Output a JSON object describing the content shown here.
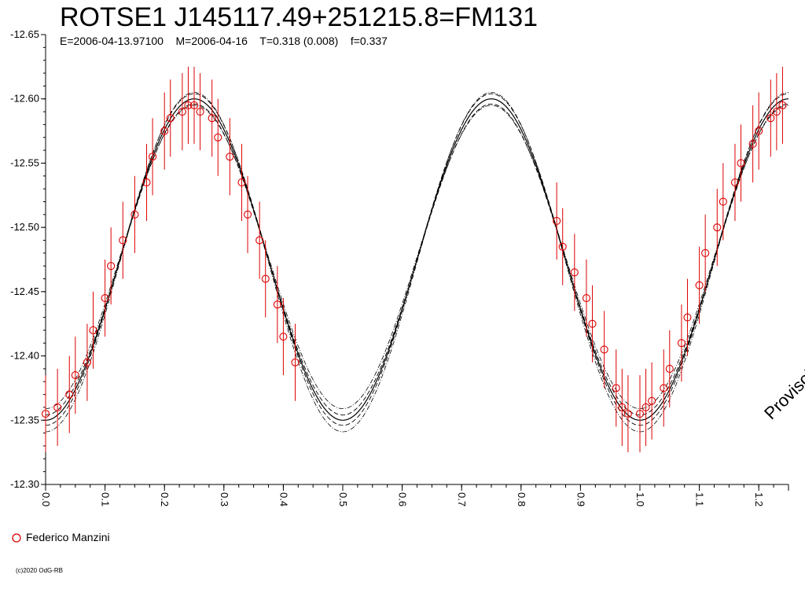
{
  "title": "ROTSE1 J145117.49+251215.8=FM131",
  "info_line": "E=2006-04-13.97100    M=2006-04-16    T=0.318 (0.008)    f=0.337",
  "watermark": "Provisoire",
  "copyright": "(c)2020 OdG-RB",
  "colors": {
    "data": "#dd0000",
    "fit": "#000000",
    "axes": "#000000"
  },
  "chart_data": {
    "type": "scatter",
    "xlabel": "",
    "ylabel": "",
    "xlim": [
      0.0,
      1.25
    ],
    "ylim": [
      -12.65,
      -12.3
    ],
    "y_inverted": true,
    "x_ticks": [
      "0.0",
      "0.1",
      "0.2",
      "0.3",
      "0.4",
      "0.5",
      "0.6",
      "0.7",
      "0.8",
      "0.9",
      "1.0",
      "1.1",
      "1.2"
    ],
    "y_ticks": [
      "-12.65",
      "-12.60",
      "-12.55",
      "-12.50",
      "-12.45",
      "-12.40",
      "-12.35",
      "-12.30"
    ],
    "model": {
      "mean": -12.475,
      "amplitude": 0.125,
      "period_phase": 0.5,
      "max_phase": 0.25,
      "curves": [
        "best fit",
        "upper bound",
        "lower bound",
        "upper dashed",
        "lower dashed"
      ]
    },
    "series": [
      {
        "name": "Federico Manzini",
        "marker": "open-circle",
        "x": [
          0.0,
          0.02,
          0.04,
          0.05,
          0.07,
          0.08,
          0.1,
          0.11,
          0.13,
          0.15,
          0.17,
          0.18,
          0.2,
          0.21,
          0.23,
          0.24,
          0.25,
          0.26,
          0.28,
          0.29,
          0.31,
          0.33,
          0.34,
          0.36,
          0.37,
          0.39,
          0.4,
          0.42,
          0.86,
          0.87,
          0.89,
          0.91,
          0.92,
          0.94,
          0.96,
          0.97,
          0.98,
          1.0,
          1.01,
          1.02,
          1.04,
          1.05,
          1.07,
          1.08,
          1.1,
          1.11,
          1.13,
          1.14,
          1.16,
          1.17,
          1.19,
          1.2,
          1.22,
          1.23,
          1.24
        ],
        "y": [
          -12.355,
          -12.36,
          -12.37,
          -12.385,
          -12.395,
          -12.42,
          -12.445,
          -12.47,
          -12.49,
          -12.51,
          -12.535,
          -12.555,
          -12.575,
          -12.585,
          -12.59,
          -12.595,
          -12.595,
          -12.59,
          -12.585,
          -12.57,
          -12.555,
          -12.535,
          -12.51,
          -12.49,
          -12.46,
          -12.44,
          -12.415,
          -12.395,
          -12.505,
          -12.485,
          -12.465,
          -12.445,
          -12.425,
          -12.405,
          -12.375,
          -12.36,
          -12.355,
          -12.355,
          -12.36,
          -12.365,
          -12.375,
          -12.39,
          -12.41,
          -12.43,
          -12.455,
          -12.48,
          -12.5,
          -12.52,
          -12.535,
          -12.55,
          -12.565,
          -12.575,
          -12.585,
          -12.59,
          -12.595
        ],
        "err": 0.03
      }
    ],
    "legend_position": "bottom-left"
  }
}
